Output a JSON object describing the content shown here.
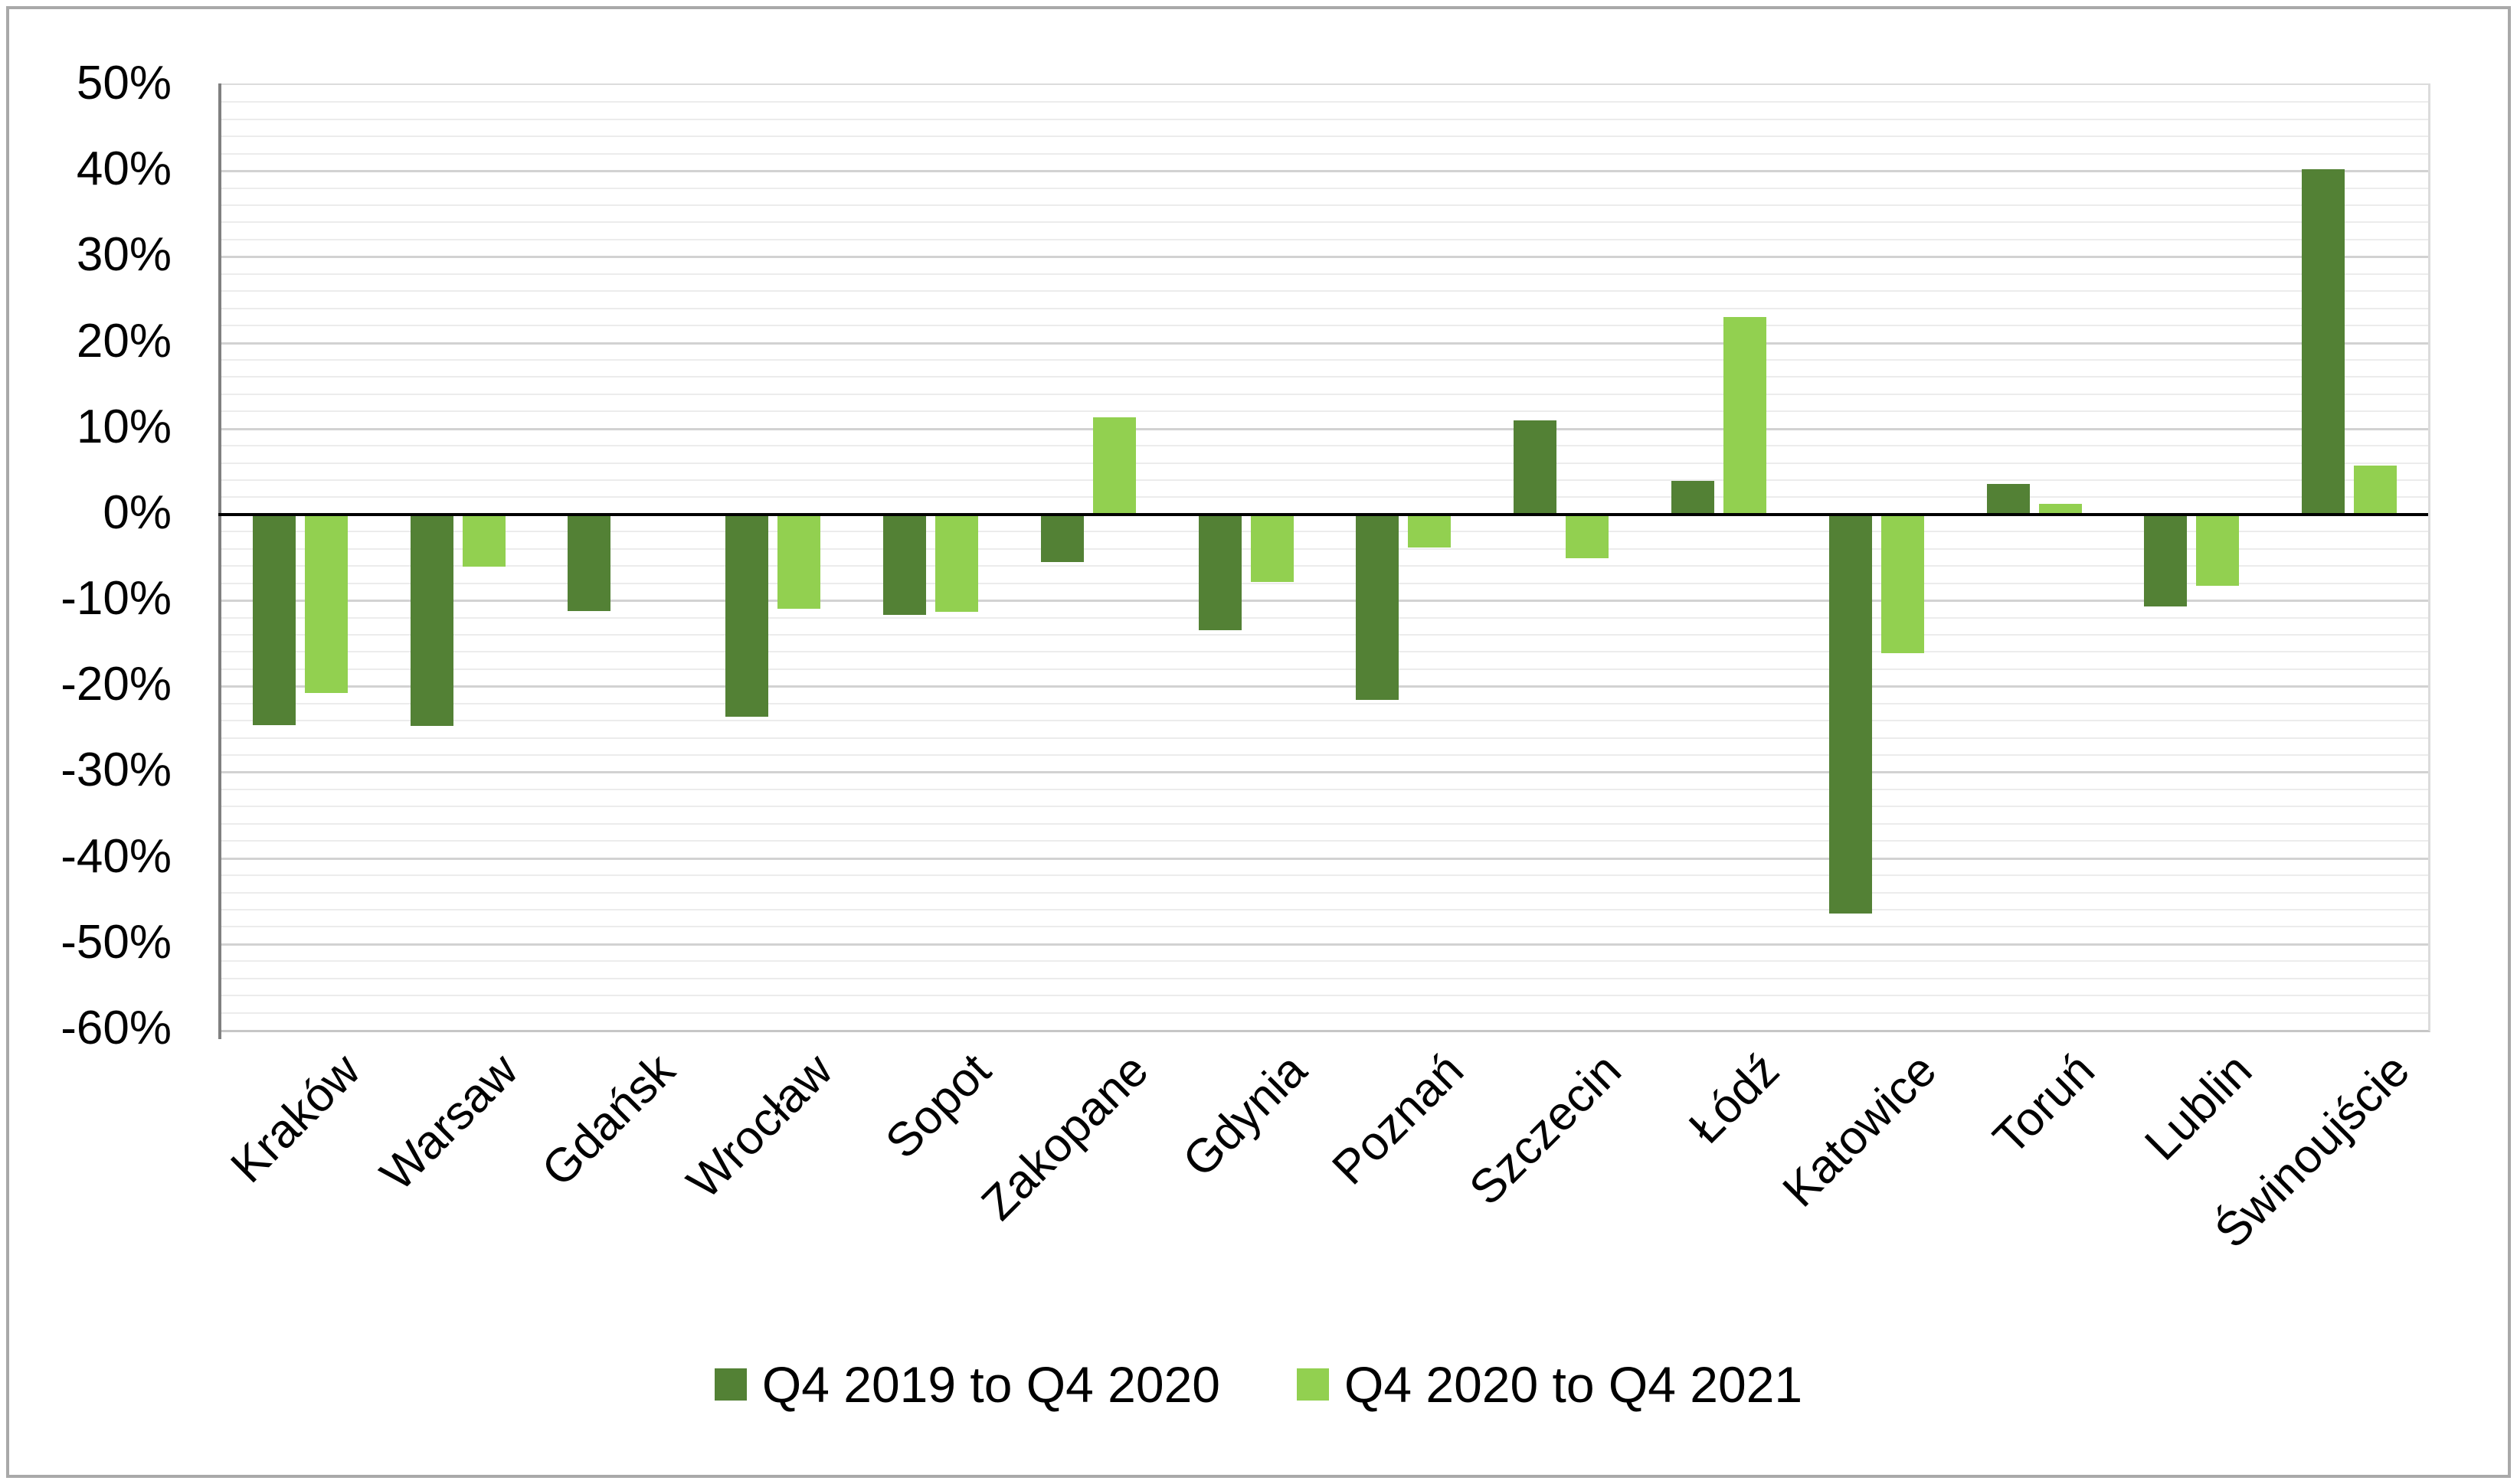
{
  "chart_data": {
    "type": "bar",
    "title": "",
    "xlabel": "",
    "ylabel": "",
    "categories": [
      "Kraków",
      "Warsaw",
      "Gdańsk",
      "Wrocław",
      "Sopot",
      "Zakopane",
      "Gdynia",
      "Poznań",
      "Szczecin",
      "Łódź",
      "Katowice",
      "Toruń",
      "Lublin",
      "Świnoujście"
    ],
    "series": [
      {
        "name": "Q4 2019 to Q4 2020",
        "color": "#538135",
        "values": [
          -24.5,
          -24.6,
          -11.2,
          -23.5,
          -11.7,
          -5.5,
          -13.5,
          -21.6,
          11.0,
          3.9,
          -46.4,
          3.6,
          -10.7,
          40.2
        ]
      },
      {
        "name": "Q4 2020 to Q4 2021",
        "color": "#92d050",
        "values": [
          -20.8,
          -6.1,
          0,
          -11.0,
          -11.3,
          11.3,
          -7.8,
          -3.8,
          -5.1,
          23.0,
          -16.1,
          1.2,
          -8.3,
          5.7
        ]
      }
    ],
    "ylim": [
      -60,
      50
    ],
    "ytick_step": 10,
    "minor_gridline_step": 2,
    "y_tick_labels": [
      "50%",
      "40%",
      "30%",
      "20%",
      "10%",
      "0%",
      "-10%",
      "-20%",
      "-30%",
      "-40%",
      "-50%",
      "-60%"
    ],
    "grid": true,
    "legend_position": "bottom",
    "bar_direction": "vertical"
  },
  "colors": {
    "series1": "#538135",
    "series2": "#92d050",
    "zero_line": "#000000",
    "axis_line": "#808080",
    "major_gridline": "#d2d2d2",
    "minor_gridline": "#ececec",
    "frame_border": "#a9a9a9"
  }
}
